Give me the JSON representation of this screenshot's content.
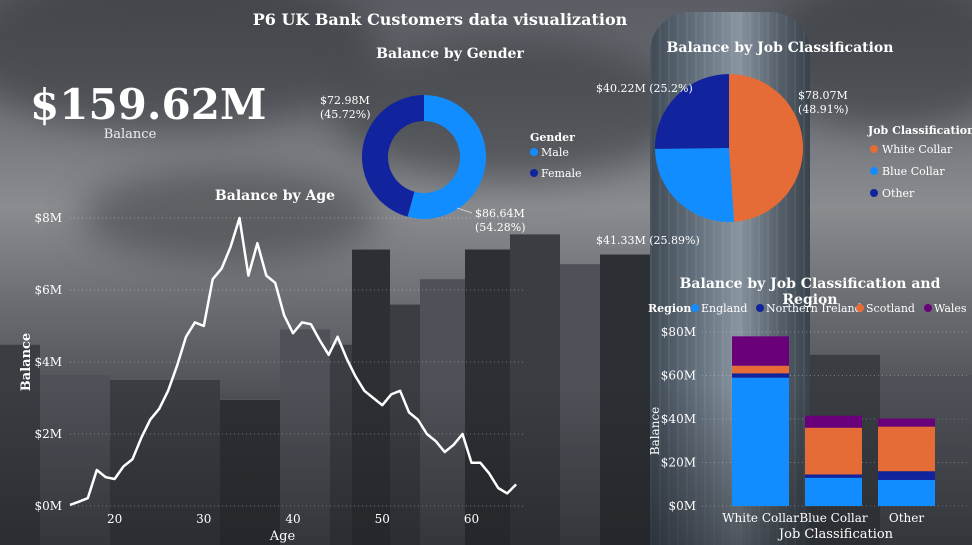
{
  "dashboard": {
    "title": "P6 UK Bank Customers data visualization",
    "kpi": {
      "value": "$159.62M",
      "label": "Balance"
    }
  },
  "colors": {
    "male": "#118DFF",
    "female": "#12239E",
    "white_collar": "#E66C37",
    "blue_collar": "#118DFF",
    "other": "#12239E",
    "england": "#118DFF",
    "northern_ireland": "#12239E",
    "scotland": "#E66C37",
    "wales": "#6B007B",
    "line": "#ffffff"
  },
  "chart_data": [
    {
      "type": "line",
      "title": "Balance by Age",
      "xlabel": "Age",
      "ylabel": "Balance",
      "xlim": [
        15,
        66
      ],
      "ylim": [
        0,
        8
      ],
      "x_ticks": [
        "20",
        "30",
        "40",
        "50",
        "60"
      ],
      "y_ticks": [
        "$0M",
        "$2M",
        "$4M",
        "$6M",
        "$8M"
      ],
      "grid": true,
      "series": [
        {
          "x": [
            15,
            16,
            17,
            18,
            19,
            20,
            21,
            22,
            23,
            24,
            25,
            26,
            27,
            28,
            29,
            30,
            31,
            32,
            33,
            34,
            35,
            36,
            37,
            38,
            39,
            40,
            41,
            42,
            43,
            44,
            45,
            46,
            47,
            48,
            49,
            50,
            51,
            52,
            53,
            54,
            55,
            56,
            57,
            58,
            59,
            60,
            61,
            62,
            63,
            64,
            65
          ],
          "y": [
            0.03,
            0.12,
            0.22,
            1.0,
            0.8,
            0.75,
            1.1,
            1.3,
            1.9,
            2.4,
            2.7,
            3.2,
            3.9,
            4.7,
            5.1,
            5.0,
            6.3,
            6.6,
            7.2,
            8.0,
            6.4,
            7.3,
            6.4,
            6.2,
            5.3,
            4.8,
            5.1,
            5.05,
            4.6,
            4.2,
            4.7,
            4.1,
            3.6,
            3.2,
            3.0,
            2.8,
            3.1,
            3.2,
            2.6,
            2.4,
            2.0,
            1.8,
            1.5,
            1.7,
            2.0,
            1.2,
            1.2,
            0.9,
            0.5,
            0.35,
            0.6
          ]
        }
      ]
    },
    {
      "type": "pie",
      "title": "Balance by Gender",
      "legend_title": "Gender",
      "legend_position": "right",
      "slices": [
        {
          "name": "Male",
          "value": 86.64,
          "label": "$86.64M (54.28%)"
        },
        {
          "name": "Female",
          "value": 72.98,
          "label": "$72.98M (45.72%)"
        }
      ]
    },
    {
      "type": "pie",
      "title": "Balance by Job Classification",
      "legend_title": "Job Classification",
      "legend_position": "right",
      "slices": [
        {
          "name": "White Collar",
          "value": 78.07,
          "label": "$78.07M (48.91%)"
        },
        {
          "name": "Blue Collar",
          "value": 41.33,
          "label": "$41.33M (25.89%)"
        },
        {
          "name": "Other",
          "value": 40.22,
          "label": "$40.22M (25.2%)"
        }
      ]
    },
    {
      "type": "bar",
      "title": "Balance by Job Classification and Region",
      "legend_title": "Region",
      "legend_position": "top",
      "xlabel": "Job Classification",
      "ylabel": "Balance",
      "ylim": [
        0,
        80
      ],
      "y_ticks": [
        "$0M",
        "$20M",
        "$40M",
        "$60M",
        "$80M"
      ],
      "categories": [
        "White Collar",
        "Blue Collar",
        "Other"
      ],
      "series": [
        {
          "name": "England",
          "values": [
            59.0,
            13.0,
            12.0
          ]
        },
        {
          "name": "Northern Ireland",
          "values": [
            2.0,
            1.5,
            4.0
          ]
        },
        {
          "name": "Scotland",
          "values": [
            3.5,
            21.5,
            20.5
          ]
        },
        {
          "name": "Wales",
          "values": [
            13.5,
            5.5,
            3.7
          ]
        }
      ]
    }
  ]
}
